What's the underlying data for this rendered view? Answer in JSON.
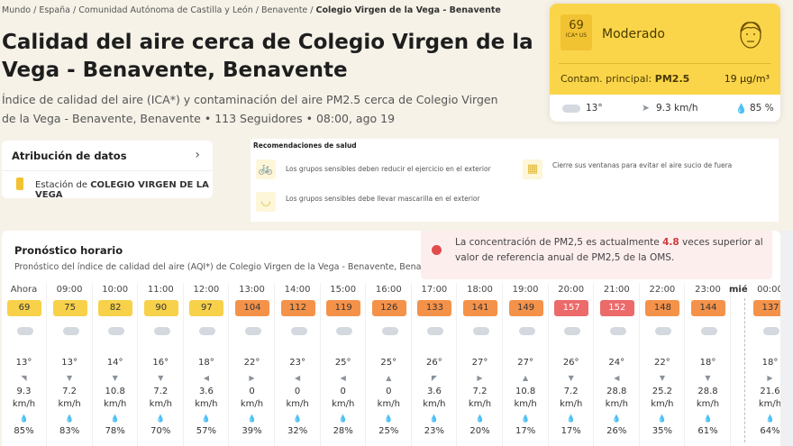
{
  "breadcrumb": [
    "Mundo",
    "España",
    "Comunidad Autónoma de Castilla y León",
    "Benavente",
    "Colegio Virgen de la Vega - Benavente"
  ],
  "title": "Calidad del aire cerca de Colegio Virgen de la Vega - Benavente, Benavente",
  "subtitle": "Índice de calidad del aire (ICA*) y contaminación del aire PM2.5 cerca de Colegio Virgen de la Vega - Benavente, Benavente • 113 Seguidores • 08:00, ago 19",
  "summary": {
    "aqi": "69",
    "aqi_unit": "ICA* US",
    "level": "Moderado",
    "pollutant_label": "Contam. principal:",
    "pollutant": "PM2.5",
    "concentration": "19 µg/m³",
    "temp": "13°",
    "wind": "9.3 km/h",
    "humidity": "85 %",
    "color": "#fbd549"
  },
  "attribution": {
    "title": "Atribución de datos",
    "station_prefix": "Estación de",
    "station": "COLEGIO VIRGEN DE LA VEGA"
  },
  "health": {
    "title": "Recomendaciones de salud",
    "items": [
      "Los grupos sensibles deben reducir el ejercicio en el exterior",
      "Cierre sus ventanas para evitar el aire sucio de fuera",
      "Los grupos sensibles debe llevar mascarilla en el exterior"
    ]
  },
  "forecast": {
    "title": "Pronóstico horario",
    "subtitle": "Pronóstico del índice de calidad del aire (AQI*) de Colegio Virgen de la Vega - Benavente, Benavente",
    "alert_pre": "La concentración de PM2,5 es actualmente",
    "alert_value": "4.8",
    "alert_post": "veces superior al valor de referencia anual de PM2,5 de la OMS.",
    "day_label": "mié",
    "hours": [
      {
        "h": "Ahora",
        "aqi": "69",
        "t": "13°",
        "w": "9.3",
        "hum": "85%"
      },
      {
        "h": "09:00",
        "aqi": "75",
        "t": "13°",
        "w": "7.2",
        "hum": "83%"
      },
      {
        "h": "10:00",
        "aqi": "82",
        "t": "14°",
        "w": "10.8",
        "hum": "78%"
      },
      {
        "h": "11:00",
        "aqi": "90",
        "t": "16°",
        "w": "7.2",
        "hum": "70%"
      },
      {
        "h": "12:00",
        "aqi": "97",
        "t": "18°",
        "w": "3.6",
        "hum": "57%"
      },
      {
        "h": "13:00",
        "aqi": "104",
        "t": "22°",
        "w": "0",
        "hum": "39%"
      },
      {
        "h": "14:00",
        "aqi": "112",
        "t": "23°",
        "w": "0",
        "hum": "32%"
      },
      {
        "h": "15:00",
        "aqi": "119",
        "t": "25°",
        "w": "0",
        "hum": "28%"
      },
      {
        "h": "16:00",
        "aqi": "126",
        "t": "25°",
        "w": "0",
        "hum": "25%"
      },
      {
        "h": "17:00",
        "aqi": "133",
        "t": "26°",
        "w": "3.6",
        "hum": "23%"
      },
      {
        "h": "18:00",
        "aqi": "141",
        "t": "27°",
        "w": "7.2",
        "hum": "20%"
      },
      {
        "h": "19:00",
        "aqi": "149",
        "t": "27°",
        "w": "10.8",
        "hum": "17%"
      },
      {
        "h": "20:00",
        "aqi": "157",
        "t": "26°",
        "w": "7.2",
        "hum": "17%"
      },
      {
        "h": "21:00",
        "aqi": "152",
        "t": "24°",
        "w": "28.8",
        "hum": "26%"
      },
      {
        "h": "22:00",
        "aqi": "148",
        "t": "22°",
        "w": "25.2",
        "hum": "35%"
      },
      {
        "h": "23:00",
        "aqi": "144",
        "t": "18°",
        "w": "28.8",
        "hum": "61%"
      },
      {
        "h": "00:00",
        "aqi": "137",
        "t": "18°",
        "w": "21.6",
        "hum": "64%"
      }
    ],
    "speed_unit": "km/h",
    "colors": {
      "moderate": "#f7d14a",
      "sensitive": "#f5924a",
      "unhealthy": "#ec6a6a"
    }
  }
}
